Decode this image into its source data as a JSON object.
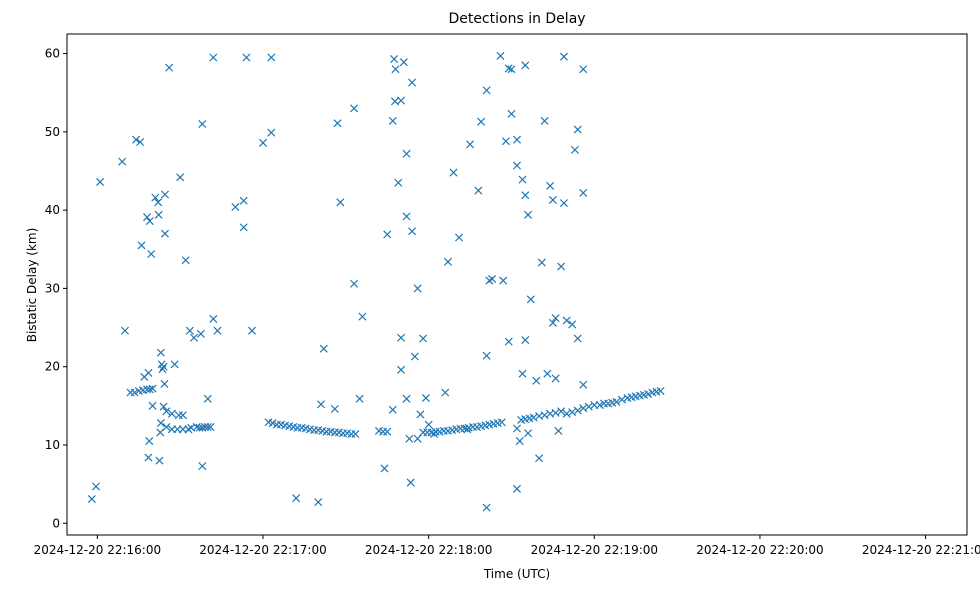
{
  "chart_data": {
    "type": "scatter",
    "title": "Detections in Delay",
    "xlabel": "Time (UTC)",
    "ylabel": "Bistatic Delay (km)",
    "x_unit": "seconds after 2024-12-20 22:16:00 UTC",
    "xlim": [
      -11,
      315
    ],
    "ylim": [
      -1.5,
      62.5
    ],
    "x_ticks": [
      {
        "value": 0,
        "label": "2024-12-20 22:16:00"
      },
      {
        "value": 60,
        "label": "2024-12-20 22:17:00"
      },
      {
        "value": 120,
        "label": "2024-12-20 22:18:00"
      },
      {
        "value": 180,
        "label": "2024-12-20 22:19:00"
      },
      {
        "value": 240,
        "label": "2024-12-20 22:20:00"
      },
      {
        "value": 300,
        "label": "2024-12-20 22:21:00"
      }
    ],
    "y_ticks": [
      0,
      10,
      20,
      30,
      40,
      50,
      60
    ],
    "marker": "x",
    "color": "#1f77b4",
    "grid": false,
    "series": [
      {
        "name": "",
        "points": [
          [
            12,
            16.7
          ],
          [
            13.5,
            16.7
          ],
          [
            15,
            16.9
          ],
          [
            16.5,
            17.0
          ],
          [
            18,
            17.1
          ],
          [
            19,
            17.1
          ],
          [
            20,
            17.2
          ],
          [
            25,
            12.3
          ],
          [
            27,
            12.0
          ],
          [
            29,
            12.0
          ],
          [
            31,
            12.0
          ],
          [
            33,
            12.0
          ],
          [
            34,
            12.2
          ],
          [
            36,
            12.3
          ],
          [
            37,
            12.2
          ],
          [
            38,
            12.2
          ],
          [
            39,
            12.3
          ],
          [
            40,
            12.3
          ],
          [
            41,
            12.3
          ],
          [
            62,
            12.9
          ],
          [
            63.5,
            12.8
          ],
          [
            65,
            12.6
          ],
          [
            66.5,
            12.6
          ],
          [
            68,
            12.5
          ],
          [
            69.5,
            12.4
          ],
          [
            71,
            12.3
          ],
          [
            72.5,
            12.2
          ],
          [
            74,
            12.2
          ],
          [
            75.5,
            12.1
          ],
          [
            77,
            12.0
          ],
          [
            78.5,
            11.9
          ],
          [
            80,
            11.9
          ],
          [
            81.5,
            11.8
          ],
          [
            83,
            11.7
          ],
          [
            84.5,
            11.7
          ],
          [
            86,
            11.6
          ],
          [
            87.5,
            11.6
          ],
          [
            89,
            11.5
          ],
          [
            90.5,
            11.5
          ],
          [
            92,
            11.4
          ],
          [
            93.5,
            11.4
          ],
          [
            102,
            11.8
          ],
          [
            103.5,
            11.7
          ],
          [
            105,
            11.7
          ],
          [
            118,
            11.6
          ],
          [
            119.5,
            11.6
          ],
          [
            121,
            11.6
          ],
          [
            122.5,
            11.7
          ],
          [
            124,
            11.7
          ],
          [
            125.5,
            11.8
          ],
          [
            127,
            11.8
          ],
          [
            128.5,
            11.9
          ],
          [
            130,
            12.0
          ],
          [
            131.5,
            12.1
          ],
          [
            133,
            12.1
          ],
          [
            134.5,
            12.2
          ],
          [
            136,
            12.3
          ],
          [
            137.5,
            12.3
          ],
          [
            139,
            12.4
          ],
          [
            140.5,
            12.5
          ],
          [
            142,
            12.6
          ],
          [
            143.5,
            12.7
          ],
          [
            145,
            12.8
          ],
          [
            146.5,
            12.9
          ],
          [
            152,
            12.1
          ],
          [
            153.5,
            13.2
          ],
          [
            155,
            13.3
          ],
          [
            156.5,
            13.4
          ],
          [
            158,
            13.5
          ],
          [
            160,
            13.7
          ],
          [
            162,
            13.8
          ],
          [
            164,
            14.0
          ],
          [
            166,
            14.1
          ],
          [
            168,
            14.3
          ],
          [
            170,
            14.0
          ],
          [
            172,
            14.2
          ],
          [
            174,
            14.4
          ],
          [
            176,
            14.7
          ],
          [
            178,
            14.9
          ],
          [
            180,
            15.1
          ],
          [
            182,
            15.1
          ],
          [
            183.5,
            15.3
          ],
          [
            185,
            15.3
          ],
          [
            186.5,
            15.4
          ],
          [
            188,
            15.5
          ],
          [
            190,
            15.8
          ],
          [
            192,
            16.0
          ],
          [
            193.5,
            16.1
          ],
          [
            195,
            16.2
          ],
          [
            196.5,
            16.3
          ],
          [
            198,
            16.4
          ],
          [
            199.5,
            16.5
          ],
          [
            201,
            16.7
          ],
          [
            202.5,
            16.8
          ],
          [
            204,
            16.9
          ],
          [
            -2,
            3.1
          ],
          [
            -0.5,
            4.7
          ],
          [
            1,
            43.6
          ],
          [
            9,
            46.2
          ],
          [
            10,
            24.6
          ],
          [
            14,
            49.0
          ],
          [
            15.5,
            48.7
          ],
          [
            16,
            35.5
          ],
          [
            17,
            18.7
          ],
          [
            18,
            39.1
          ],
          [
            18.5,
            19.2
          ],
          [
            18.5,
            8.4
          ],
          [
            18.8,
            10.5
          ],
          [
            19,
            38.6
          ],
          [
            19.5,
            34.4
          ],
          [
            20,
            15.0
          ],
          [
            21,
            41.6
          ],
          [
            22,
            41.0
          ],
          [
            22.2,
            39.4
          ],
          [
            22.5,
            8.0
          ],
          [
            22.8,
            11.6
          ],
          [
            23,
            21.8
          ],
          [
            23,
            12.8
          ],
          [
            23.3,
            20.3
          ],
          [
            23.6,
            19.7
          ],
          [
            24,
            14.9
          ],
          [
            24,
            20.0
          ],
          [
            24.3,
            17.8
          ],
          [
            24.5,
            37.0
          ],
          [
            24.5,
            42.0
          ],
          [
            25,
            14.3
          ],
          [
            26,
            58.2
          ],
          [
            27,
            14.0
          ],
          [
            28,
            20.3
          ],
          [
            29.5,
            13.8
          ],
          [
            30,
            44.2
          ],
          [
            31,
            13.8
          ],
          [
            32,
            33.6
          ],
          [
            33.5,
            24.6
          ],
          [
            35,
            23.7
          ],
          [
            37.5,
            24.2
          ],
          [
            38,
            51.0
          ],
          [
            38,
            7.3
          ],
          [
            40,
            15.9
          ],
          [
            42,
            26.1
          ],
          [
            42,
            59.5
          ],
          [
            43.5,
            24.6
          ],
          [
            50,
            40.4
          ],
          [
            53,
            37.8
          ],
          [
            53,
            41.2
          ],
          [
            54,
            59.5
          ],
          [
            56,
            24.6
          ],
          [
            60,
            48.6
          ],
          [
            63,
            59.5
          ],
          [
            63,
            49.9
          ],
          [
            72,
            3.2
          ],
          [
            80,
            2.7
          ],
          [
            81,
            15.2
          ],
          [
            82,
            22.3
          ],
          [
            86,
            14.6
          ],
          [
            87,
            51.1
          ],
          [
            88,
            41.0
          ],
          [
            93,
            53.0
          ],
          [
            93,
            30.6
          ],
          [
            95,
            15.9
          ],
          [
            96,
            26.4
          ],
          [
            104,
            7.0
          ],
          [
            105,
            36.9
          ],
          [
            107,
            14.5
          ],
          [
            107,
            51.4
          ],
          [
            107.5,
            59.3
          ],
          [
            107.8,
            53.9
          ],
          [
            108,
            58.0
          ],
          [
            109,
            43.5
          ],
          [
            110,
            54.0
          ],
          [
            110,
            23.7
          ],
          [
            110,
            19.6
          ],
          [
            111,
            58.9
          ],
          [
            112,
            39.2
          ],
          [
            112,
            47.2
          ],
          [
            112,
            15.9
          ],
          [
            113,
            10.8
          ],
          [
            113.5,
            5.2
          ],
          [
            114,
            37.3
          ],
          [
            114,
            56.3
          ],
          [
            115,
            21.3
          ],
          [
            116,
            30.0
          ],
          [
            116,
            10.8
          ],
          [
            117,
            13.9
          ],
          [
            118,
            23.6
          ],
          [
            119,
            16.0
          ],
          [
            120,
            12.6
          ],
          [
            122,
            11.4
          ],
          [
            126,
            16.7
          ],
          [
            127,
            33.4
          ],
          [
            129,
            44.8
          ],
          [
            131,
            36.5
          ],
          [
            134,
            12.0
          ],
          [
            135,
            48.4
          ],
          [
            138,
            42.5
          ],
          [
            139,
            51.3
          ],
          [
            141,
            55.3
          ],
          [
            141,
            21.4
          ],
          [
            141,
            2.0
          ],
          [
            142,
            31.0
          ],
          [
            143,
            31.2
          ],
          [
            146,
            59.7
          ],
          [
            147,
            31.0
          ],
          [
            148,
            48.8
          ],
          [
            149,
            58.1
          ],
          [
            149,
            23.2
          ],
          [
            150,
            58.0
          ],
          [
            150,
            52.3
          ],
          [
            152,
            45.7
          ],
          [
            152,
            49.0
          ],
          [
            152,
            4.4
          ],
          [
            153,
            10.5
          ],
          [
            154,
            19.1
          ],
          [
            154,
            43.9
          ],
          [
            155,
            41.9
          ],
          [
            155,
            23.4
          ],
          [
            155,
            58.5
          ],
          [
            156,
            39.4
          ],
          [
            156,
            11.5
          ],
          [
            157,
            28.6
          ],
          [
            159,
            18.2
          ],
          [
            160,
            8.3
          ],
          [
            161,
            33.3
          ],
          [
            162,
            51.4
          ],
          [
            163,
            19.1
          ],
          [
            164,
            43.1
          ],
          [
            165,
            41.3
          ],
          [
            165,
            25.6
          ],
          [
            166,
            26.2
          ],
          [
            166,
            18.5
          ],
          [
            167,
            11.8
          ],
          [
            168,
            32.8
          ],
          [
            169,
            40.9
          ],
          [
            169,
            59.6
          ],
          [
            170,
            25.9
          ],
          [
            172,
            25.4
          ],
          [
            173,
            47.7
          ],
          [
            174,
            23.6
          ],
          [
            174,
            50.3
          ],
          [
            176,
            58.0
          ],
          [
            176,
            17.7
          ],
          [
            176,
            42.2
          ]
        ]
      }
    ]
  }
}
